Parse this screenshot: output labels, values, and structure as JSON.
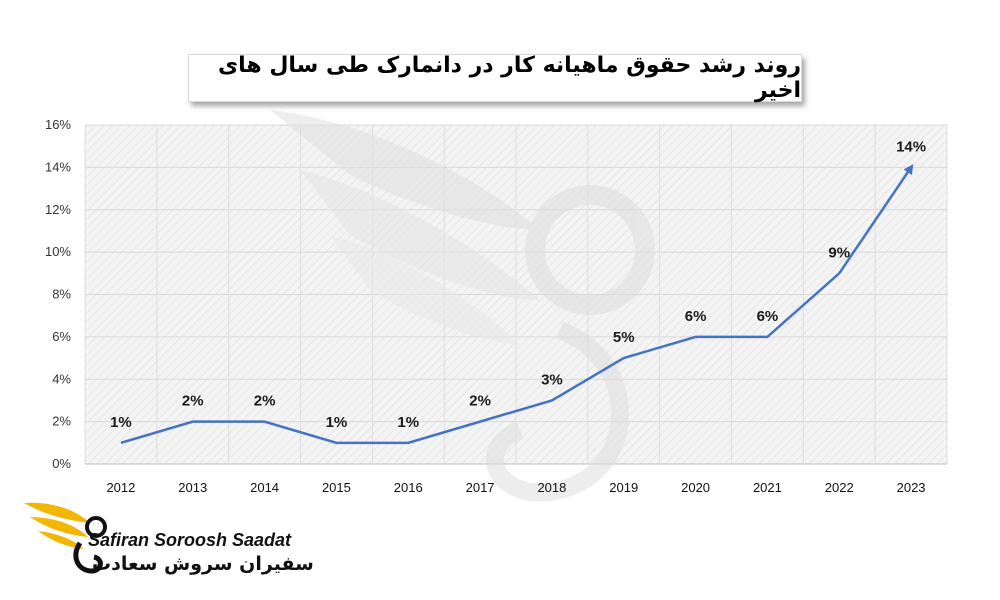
{
  "brand": {
    "name_en": "Safiran Soroosh Saadat",
    "name_fa": "سفیران سروش سعادت",
    "accent_color": "#F2B705",
    "logo_icon": "bird-wing-logo-icon"
  },
  "chart_data": {
    "type": "line",
    "title": "روند رشد حقوق ماهیانه کار در دانمارک طی سال های اخیر",
    "categories": [
      "2012",
      "2013",
      "2014",
      "2015",
      "2016",
      "2017",
      "2018",
      "2019",
      "2020",
      "2021",
      "2022",
      "2023"
    ],
    "series": [
      {
        "values": [
          1,
          2,
          2,
          1,
          1,
          2,
          3,
          5,
          6,
          6,
          9,
          14
        ],
        "color": "#4472C4"
      }
    ],
    "data_labels": [
      "1%",
      "2%",
      "2%",
      "1%",
      "1%",
      "2%",
      "3%",
      "5%",
      "6%",
      "6%",
      "9%",
      "14%"
    ],
    "y_ticks": [
      "0%",
      "2%",
      "4%",
      "6%",
      "8%",
      "10%",
      "12%",
      "14%",
      "16%"
    ],
    "ylim": [
      0,
      16
    ],
    "grid": true,
    "end_marker": "arrow"
  }
}
